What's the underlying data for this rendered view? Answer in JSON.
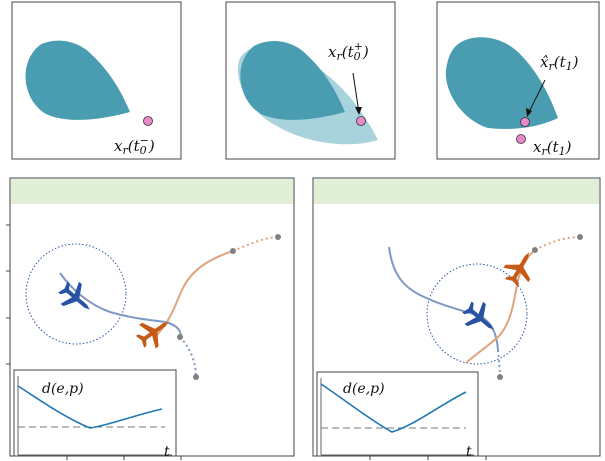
{
  "top_panels": [
    {
      "label": "x_r(t_0^-)",
      "label_parts": {
        "base": "x",
        "sub": "r",
        "arg": "(t",
        "argsub": "0",
        "argsup": "−",
        "close": ")"
      }
    },
    {
      "label": "x_r(t_0^+)",
      "label_parts": {
        "base": "x",
        "sub": "r",
        "arg": "(t",
        "argsub": "0",
        "argsup": "+",
        "close": ")"
      }
    },
    {
      "labels": [
        {
          "label": "x̂_r(t_1)",
          "label_parts": {
            "base": "x̂",
            "sub": "r",
            "arg": "(t",
            "argsub": "1",
            "close": ")"
          }
        },
        {
          "label": "x_r(t_1)",
          "label_parts": {
            "base": "x",
            "sub": "r",
            "arg": "(t",
            "argsub": "1",
            "close": ")"
          }
        }
      ]
    }
  ],
  "bottom_panels": [
    {
      "inset": {
        "ylabel": "d(e,p)",
        "xlabel": "t"
      }
    },
    {
      "inset": {
        "ylabel": "d(e,p)",
        "xlabel": "t"
      }
    }
  ],
  "colors": {
    "region_dark": "#4a9db0",
    "region_light": "#a9d3dc",
    "point_pink": "#e989c9",
    "plane_blue": "#2853a3",
    "plane_orange": "#c65a17",
    "banner_green": "#e2efd8",
    "curve_blue": "#1f77b4"
  }
}
